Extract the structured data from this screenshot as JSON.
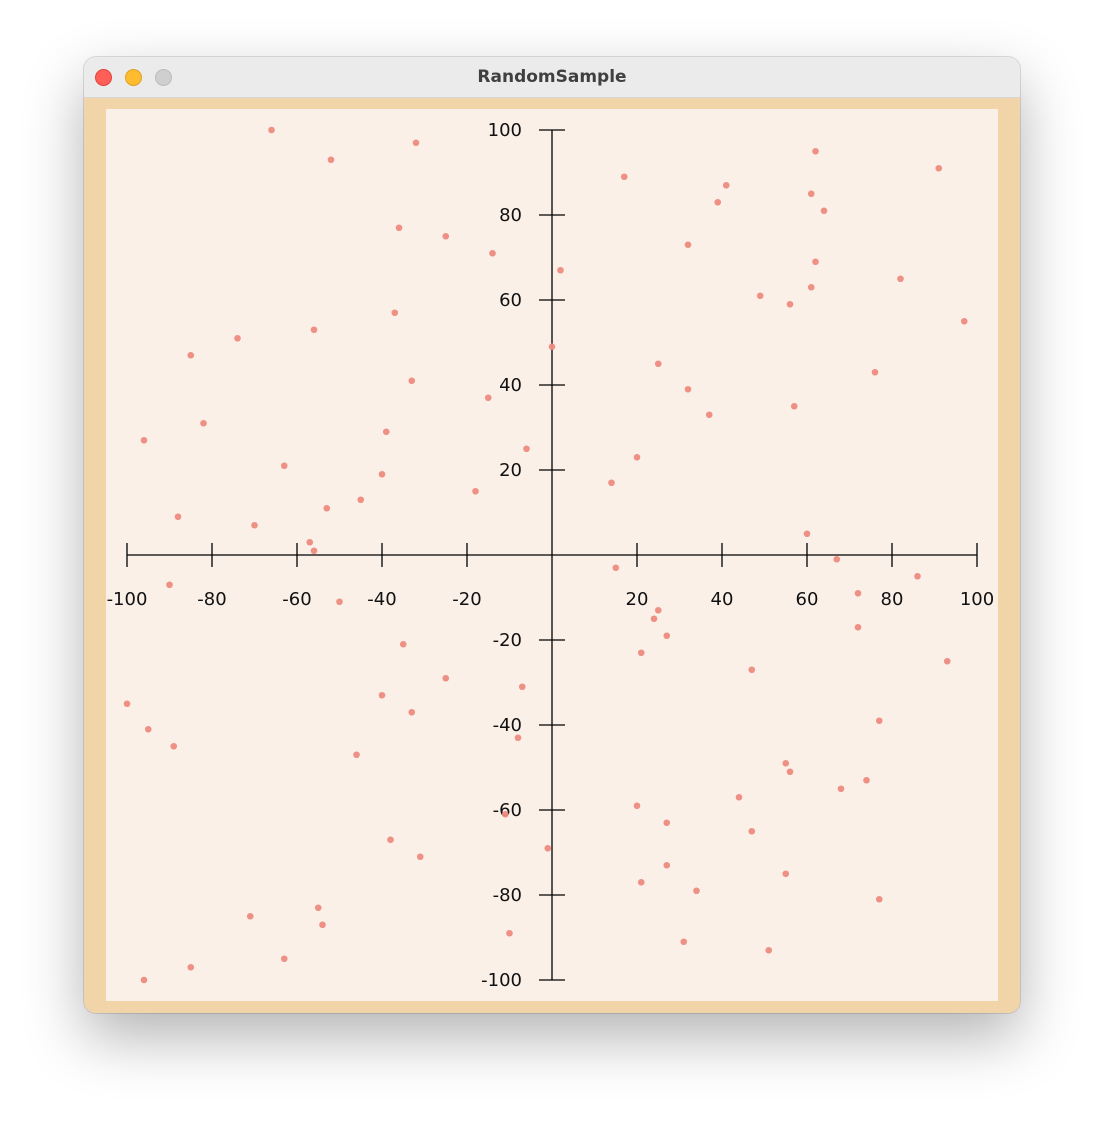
{
  "window": {
    "title": "RandomSample"
  },
  "colors": {
    "frame": "#f1d5a8",
    "plot_background": "#fbf0e8",
    "point": "#ee8a80",
    "axis": "#000000"
  },
  "chart_data": {
    "type": "scatter",
    "title": "",
    "xlabel": "",
    "ylabel": "",
    "xlim": [
      -100,
      100
    ],
    "ylim": [
      -100,
      100
    ],
    "grid": false,
    "x_ticks": [
      -100,
      -80,
      -60,
      -40,
      -20,
      20,
      40,
      60,
      80,
      100
    ],
    "y_ticks": [
      100,
      80,
      60,
      40,
      20,
      -20,
      -40,
      -60,
      -80,
      -100
    ],
    "x_tick_labels": [
      "-100",
      "-80",
      "-60",
      "-40",
      "-20",
      "20",
      "40",
      "60",
      "80",
      "100"
    ],
    "y_tick_labels": [
      "100",
      "80",
      "60",
      "40",
      "20",
      "-20",
      "-40",
      "-60",
      "-80",
      "-100"
    ],
    "points": [
      [
        -66,
        100
      ],
      [
        -52,
        93
      ],
      [
        -32,
        97
      ],
      [
        -36,
        77
      ],
      [
        -25,
        75
      ],
      [
        -14,
        71
      ],
      [
        -56,
        53
      ],
      [
        -74,
        51
      ],
      [
        -85,
        47
      ],
      [
        -37,
        57
      ],
      [
        -33,
        41
      ],
      [
        -15,
        37
      ],
      [
        -96,
        27
      ],
      [
        -82,
        31
      ],
      [
        -39,
        29
      ],
      [
        -63,
        21
      ],
      [
        -40,
        19
      ],
      [
        -6,
        25
      ],
      [
        -45,
        13
      ],
      [
        -53,
        11
      ],
      [
        -18,
        15
      ],
      [
        -88,
        9
      ],
      [
        -70,
        7
      ],
      [
        -57,
        3
      ],
      [
        -56,
        1
      ],
      [
        -90,
        -7
      ],
      [
        -50,
        -11
      ],
      [
        0,
        49
      ],
      [
        2,
        67
      ],
      [
        17,
        89
      ],
      [
        39,
        83
      ],
      [
        41,
        87
      ],
      [
        32,
        73
      ],
      [
        61,
        85
      ],
      [
        62,
        95
      ],
      [
        64,
        81
      ],
      [
        62,
        69
      ],
      [
        61,
        63
      ],
      [
        49,
        61
      ],
      [
        56,
        59
      ],
      [
        82,
        65
      ],
      [
        91,
        91
      ],
      [
        97,
        55
      ],
      [
        25,
        45
      ],
      [
        32,
        39
      ],
      [
        37,
        33
      ],
      [
        57,
        35
      ],
      [
        76,
        43
      ],
      [
        20,
        23
      ],
      [
        14,
        17
      ],
      [
        60,
        5
      ],
      [
        15,
        -3
      ],
      [
        67,
        -1
      ],
      [
        86,
        -5
      ],
      [
        72,
        -9
      ],
      [
        25,
        -13
      ],
      [
        24,
        -15
      ],
      [
        27,
        -19
      ],
      [
        21,
        -23
      ],
      [
        72,
        -17
      ],
      [
        93,
        -25
      ],
      [
        47,
        -27
      ],
      [
        -35,
        -21
      ],
      [
        -25,
        -29
      ],
      [
        -7,
        -31
      ],
      [
        -40,
        -33
      ],
      [
        -33,
        -37
      ],
      [
        -100,
        -35
      ],
      [
        -95,
        -41
      ],
      [
        -89,
        -45
      ],
      [
        -46,
        -47
      ],
      [
        -8,
        -43
      ],
      [
        -11,
        -61
      ],
      [
        -38,
        -67
      ],
      [
        -31,
        -71
      ],
      [
        -1,
        -69
      ],
      [
        -71,
        -85
      ],
      [
        -55,
        -83
      ],
      [
        -54,
        -87
      ],
      [
        -10,
        -89
      ],
      [
        -63,
        -95
      ],
      [
        -85,
        -97
      ],
      [
        -96,
        -100
      ],
      [
        77,
        -39
      ],
      [
        55,
        -49
      ],
      [
        56,
        -51
      ],
      [
        74,
        -53
      ],
      [
        68,
        -55
      ],
      [
        44,
        -57
      ],
      [
        20,
        -59
      ],
      [
        27,
        -63
      ],
      [
        47,
        -65
      ],
      [
        27,
        -73
      ],
      [
        55,
        -75
      ],
      [
        21,
        -77
      ],
      [
        34,
        -79
      ],
      [
        77,
        -81
      ],
      [
        31,
        -91
      ],
      [
        51,
        -93
      ]
    ]
  }
}
